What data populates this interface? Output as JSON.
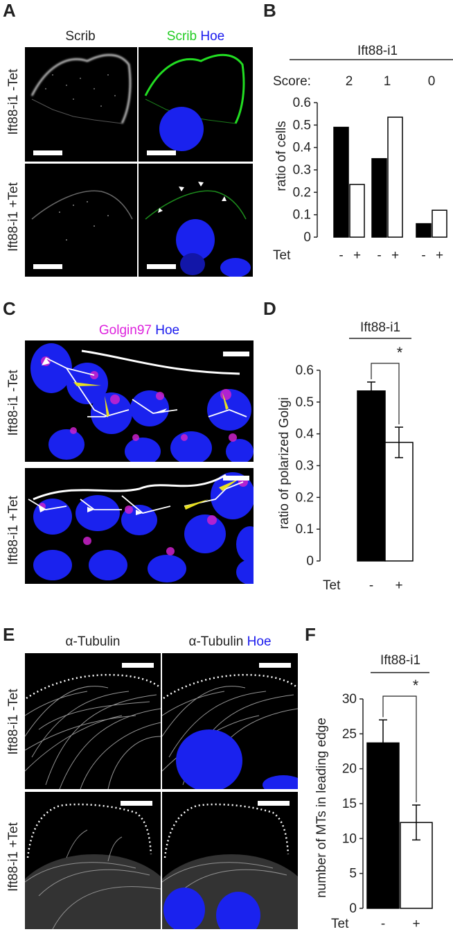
{
  "panelA": {
    "label": "A",
    "col1": "Scrib",
    "col2_green": "Scrib",
    "col2_blue": "Hoe",
    "row1": "Ift88-i1 -Tet",
    "row2": "Ift88-i1 +Tet"
  },
  "panelB": {
    "label": "B",
    "group": "Ift88-i1",
    "score_label": "Score:",
    "scores": [
      "2",
      "1",
      "0"
    ],
    "ylabel": "ratio of cells",
    "yticks": [
      "0",
      "0.1",
      "0.2",
      "0.3",
      "0.4",
      "0.5",
      "0.6"
    ],
    "tet_label": "Tet",
    "tet_minus": "-",
    "tet_plus": "+"
  },
  "panelC": {
    "label": "C",
    "title_magenta": "Golgin97",
    "title_blue": "Hoe",
    "row1": "Ift88-i1 -Tet",
    "row2": "Ift88-i1 +Tet"
  },
  "panelD": {
    "label": "D",
    "group": "Ift88-i1",
    "sig": "*",
    "ylabel": "ratio of polarized Golgi",
    "yticks": [
      "0",
      "0.1",
      "0.2",
      "0.3",
      "0.4",
      "0.5",
      "0.6"
    ],
    "tet_label": "Tet",
    "tet_minus": "-",
    "tet_plus": "+"
  },
  "panelE": {
    "label": "E",
    "col1": "α-Tubulin",
    "col2_white": "α-Tubulin",
    "col2_blue": "Hoe",
    "row1": "Ift88-i1 -Tet",
    "row2": "Ift88-i1 +Tet"
  },
  "panelF": {
    "label": "F",
    "group": "Ift88-i1",
    "sig": "*",
    "ylabel": "number of MTs in leading edge",
    "yticks": [
      "0",
      "5",
      "10",
      "15",
      "20",
      "25",
      "30"
    ],
    "tet_label": "Tet",
    "tet_minus": "-",
    "tet_plus": "+"
  },
  "chart_data": [
    {
      "panel": "B",
      "type": "bar",
      "categories": [
        "2",
        "1",
        "0"
      ],
      "series": [
        {
          "name": "-",
          "color": "#000000",
          "values": [
            0.49,
            0.35,
            0.06
          ]
        },
        {
          "name": "+",
          "color": "#ffffff",
          "values": [
            0.235,
            0.535,
            0.12
          ]
        }
      ],
      "ylabel": "ratio of cells",
      "ylim": [
        0,
        0.6
      ]
    },
    {
      "panel": "D",
      "type": "bar",
      "categories": [
        "-",
        "+"
      ],
      "values": [
        0.535,
        0.373
      ],
      "errors": [
        0.028,
        0.048
      ],
      "colors": [
        "#000000",
        "#ffffff"
      ],
      "ylabel": "ratio of polarized Golgi",
      "ylim": [
        0,
        0.6
      ]
    },
    {
      "panel": "F",
      "type": "bar",
      "categories": [
        "-",
        "+"
      ],
      "values": [
        23.7,
        12.3
      ],
      "errors": [
        3.3,
        2.5
      ],
      "colors": [
        "#000000",
        "#ffffff"
      ],
      "ylabel": "number of MTs in leading edge",
      "ylim": [
        0,
        30
      ]
    }
  ]
}
